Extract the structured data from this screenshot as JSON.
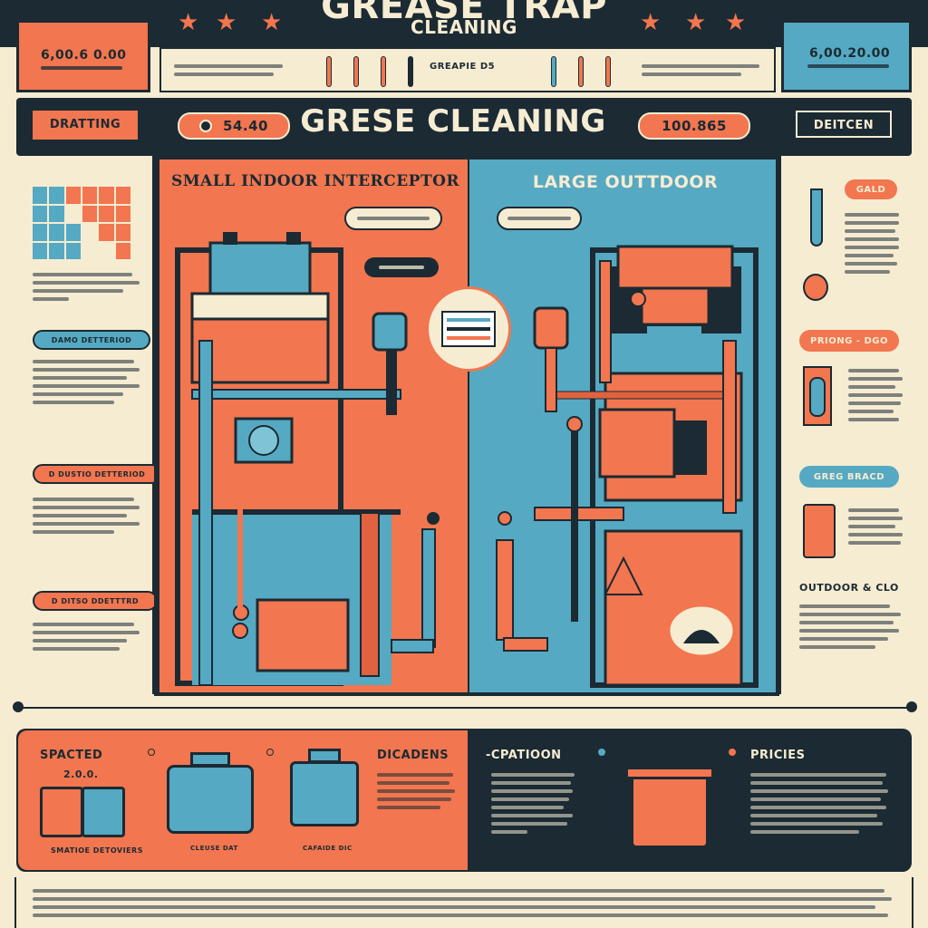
{
  "header": {
    "title": "GREASE TRAP",
    "subtitle": "CLEANING",
    "left_box": "6,00.6 0.00",
    "right_box": "6,00.20.00",
    "center_label": "GREAPIE D5"
  },
  "banner": {
    "left_tab": "DRATTING",
    "price_left": "54.40",
    "main_title": "GRESE CLEANING",
    "price_right": "100.865",
    "right_tab": "DEITCEN"
  },
  "panels": {
    "small_title": "SMALL INDOOR INTERCEPTOR",
    "large_title": "LARGE OUTTDOOR"
  },
  "left_sidebar": {
    "pill1": "DAMO DETTERIOD",
    "pill2": "D DUSTIO DETTERIOD",
    "pill3": "D DITSO DDETTTRD"
  },
  "right_sidebar": {
    "pill1": "GALD",
    "pill2": "PRIONG - DGO",
    "pill3": "GREG BRACD",
    "section": "OUTDOOR & CLO"
  },
  "bottom": {
    "spacted": "SPACTED",
    "capacity": "2.0.0.",
    "dicadens": "DICADENS",
    "cpatioon": "-CPATIOON",
    "pricies": "PRICIES",
    "small_unit_label": "SMATIOE DETOVIERS",
    "caption_a": "CLEUSE DAT",
    "caption_b": "CAFAIDE DIC"
  },
  "colors": {
    "orange": "#f2764f",
    "blue": "#56a9c2",
    "navy": "#1b2a33",
    "cream": "#f6ecd2"
  }
}
